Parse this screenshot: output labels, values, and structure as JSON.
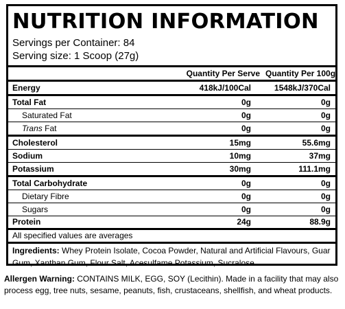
{
  "panel": {
    "title": "NUTRITION INFORMATION",
    "servings_per_container": "Servings per Container: 84",
    "serving_size": "Serving size: 1 Scoop (27g)",
    "columns": {
      "per_serve": "Quantity Per Serve",
      "per_100g": "Quantity Per 100g"
    },
    "rows": [
      {
        "label": "Energy",
        "per_serve": "418kJ/100Cal",
        "per_100g": "1548kJ/370Cal"
      },
      {
        "label": "Total Fat",
        "per_serve": "0g",
        "per_100g": "0g"
      },
      {
        "label": "Saturated Fat",
        "per_serve": "0g",
        "per_100g": "0g"
      },
      {
        "label_italic": "Trans",
        "label": " Fat",
        "per_serve": "0g",
        "per_100g": "0g"
      },
      {
        "label": "Cholesterol",
        "per_serve": "15mg",
        "per_100g": "55.6mg"
      },
      {
        "label": "Sodium",
        "per_serve": "10mg",
        "per_100g": "37mg"
      },
      {
        "label": "Potassium",
        "per_serve": "30mg",
        "per_100g": "111.1mg"
      },
      {
        "label": "Total Carbohydrate",
        "per_serve": "0g",
        "per_100g": "0g"
      },
      {
        "label": "Dietary Fibre",
        "per_serve": "0g",
        "per_100g": "0g"
      },
      {
        "label": "Sugars",
        "per_serve": "0g",
        "per_100g": "0g"
      },
      {
        "label": "Protein",
        "per_serve": "24g",
        "per_100g": "88.9g"
      }
    ],
    "averages_note": "All specified values are averages",
    "ingredients_label": "Ingredients:",
    "ingredients_text": " Whey Protein Isolate, Cocoa Powder, Natural and Artificial Flavours, Guar Gum, Xanthan Gum, Flour Salt, Acesulfame Potassium, Sucralose."
  },
  "allergen": {
    "label": "Allergen Warning:",
    "text": " CONTAINS MILK, EGG, SOY (Lecithin). Made in a facility that may also process egg, tree nuts, sesame, peanuts, fish, crustaceans, shellfish, and wheat products."
  }
}
